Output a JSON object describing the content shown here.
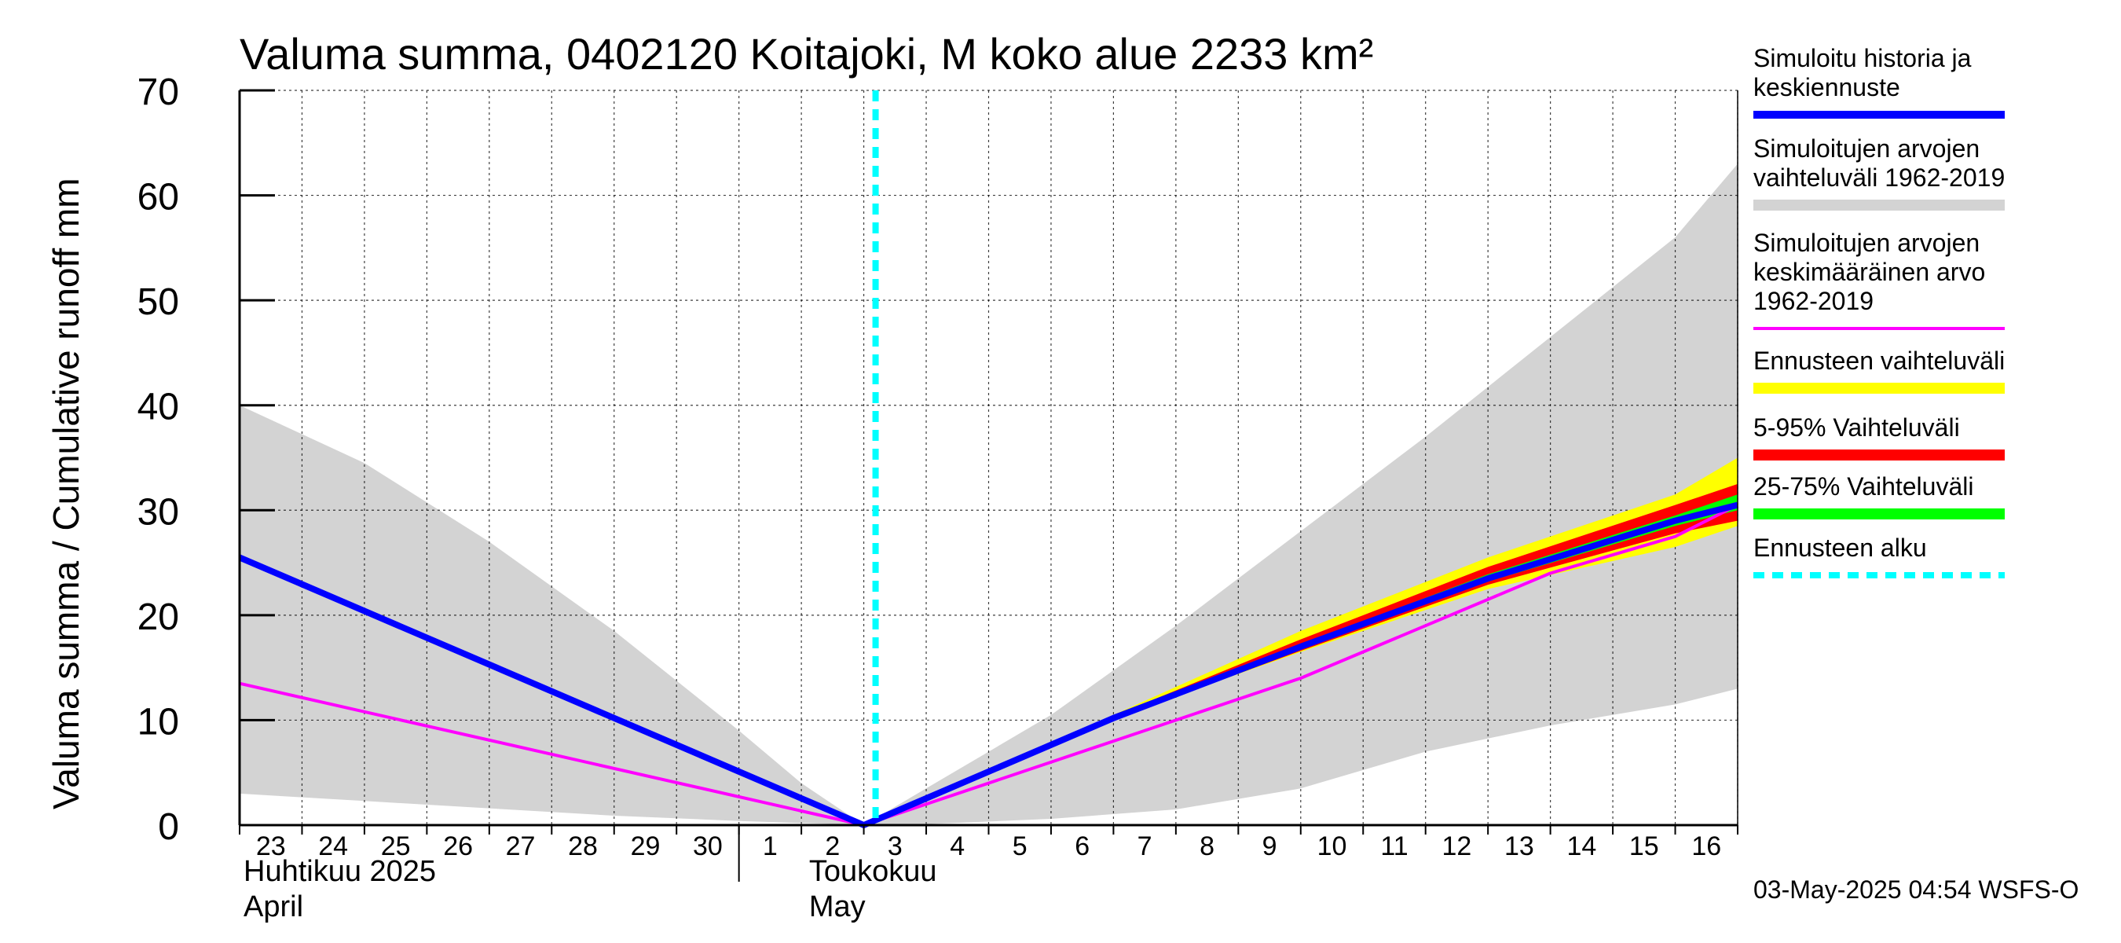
{
  "chart_data": {
    "type": "area",
    "title": "Valuma summa, 0402120 Koitajoki, M koko alue 2233 km²",
    "ylabel": "Valuma summa / Cumulative runoff    mm",
    "ylim": [
      0,
      70
    ],
    "yticks": [
      "0",
      "10",
      "20",
      "30",
      "40",
      "50",
      "60",
      "70"
    ],
    "x_range": [
      "2025-04-23",
      "2025-05-16"
    ],
    "x_tick_labels": [
      "23",
      "24",
      "25",
      "26",
      "27",
      "28",
      "29",
      "30",
      "1",
      "2",
      "3",
      "4",
      "5",
      "6",
      "7",
      "8",
      "9",
      "10",
      "11",
      "12",
      "13",
      "14",
      "15",
      "16"
    ],
    "months": [
      {
        "fi": "Huhtikuu  2025",
        "en": "April"
      },
      {
        "fi": "Toukokuu",
        "en": "May"
      }
    ],
    "forecast_start": "2025-05-03",
    "grid": true,
    "legend_position": "right",
    "footer": "03-May-2025 04:54 WSFS-O",
    "legend": [
      {
        "label_lines": [
          "Simuloitu historia ja",
          "keskiennuste"
        ],
        "color": "#0000ff",
        "style": "solid"
      },
      {
        "label_lines": [
          "Simuloitujen arvojen",
          "vaihteluväli 1962-2019"
        ],
        "color": "#d3d3d3",
        "style": "band"
      },
      {
        "label_lines": [
          "Simuloitujen arvojen",
          "keskimääräinen arvo",
          "   1962-2019"
        ],
        "color": "#ff00ff",
        "style": "thin"
      },
      {
        "label_lines": [
          "Ennusteen vaihteluväli"
        ],
        "color": "#ffff00",
        "style": "band"
      },
      {
        "label_lines": [
          "5-95% Vaihteluväli"
        ],
        "color": "#ff0000",
        "style": "band"
      },
      {
        "label_lines": [
          "25-75% Vaihteluväli"
        ],
        "color": "#00ff00",
        "style": "band"
      },
      {
        "label_lines": [
          "Ennusteen alku"
        ],
        "color": "#00ffff",
        "style": "dashed"
      }
    ],
    "series": {
      "hist_range": {
        "name": "Simuloitujen arvojen vaihteluväli 1962-2019",
        "x": [
          "2025-04-23",
          "2025-04-25",
          "2025-04-27",
          "2025-04-29",
          "2025-05-01",
          "2025-05-02",
          "2025-05-03",
          "2025-05-04",
          "2025-05-06",
          "2025-05-08",
          "2025-05-10",
          "2025-05-12",
          "2025-05-14",
          "2025-05-16",
          "2025-05-17"
        ],
        "upper": [
          40.0,
          34.5,
          27.0,
          18.5,
          9.0,
          4.0,
          0.0,
          3.5,
          10.5,
          19.0,
          28.0,
          37.0,
          46.5,
          56.0,
          63.0
        ],
        "lower": [
          3.0,
          2.3,
          1.6,
          0.9,
          0.4,
          0.2,
          0.0,
          0.1,
          0.6,
          1.5,
          3.5,
          7.0,
          9.5,
          11.5,
          13.0
        ]
      },
      "forecast_range": {
        "name": "Ennusteen vaihteluväli",
        "x": [
          "2025-05-03",
          "2025-05-07",
          "2025-05-10",
          "2025-05-13",
          "2025-05-16",
          "2025-05-17"
        ],
        "upper": [
          0.0,
          10.5,
          18.5,
          25.5,
          31.5,
          35.0
        ],
        "lower": [
          0.0,
          10.2,
          16.5,
          22.5,
          26.5,
          28.5
        ]
      },
      "p5_95": {
        "name": "5-95% Vaihteluväli",
        "x": [
          "2025-05-03",
          "2025-05-07",
          "2025-05-10",
          "2025-05-13",
          "2025-05-16",
          "2025-05-17"
        ],
        "upper": [
          0.0,
          10.4,
          17.7,
          24.6,
          30.5,
          32.5
        ],
        "lower": [
          0.0,
          10.1,
          16.6,
          22.9,
          27.8,
          29.0
        ]
      },
      "p25_75": {
        "name": "25-75% Vaihteluväli",
        "x": [
          "2025-05-03",
          "2025-05-07",
          "2025-05-10",
          "2025-05-13",
          "2025-05-16",
          "2025-05-17"
        ],
        "upper": [
          0.0,
          10.3,
          17.2,
          23.9,
          29.5,
          31.5
        ],
        "lower": [
          0.0,
          10.2,
          16.8,
          23.2,
          28.5,
          30.0
        ]
      },
      "hist_mean": {
        "name": "Simuloitujen arvojen keskimääräinen arvo 1962-2019",
        "x": [
          "2025-04-23",
          "2025-05-03",
          "2025-05-07",
          "2025-05-10",
          "2025-05-12",
          "2025-05-14",
          "2025-05-16",
          "2025-05-17"
        ],
        "y": [
          13.5,
          0.0,
          8.0,
          14.0,
          19.0,
          24.0,
          27.5,
          30.5
        ]
      },
      "sim_forecast": {
        "name": "Simuloitu historia ja keskiennuste",
        "x": [
          "2025-04-23",
          "2025-05-03",
          "2025-05-07",
          "2025-05-10",
          "2025-05-13",
          "2025-05-16",
          "2025-05-17"
        ],
        "y": [
          25.5,
          0.0,
          10.2,
          17.0,
          23.5,
          29.0,
          30.5
        ]
      }
    }
  }
}
